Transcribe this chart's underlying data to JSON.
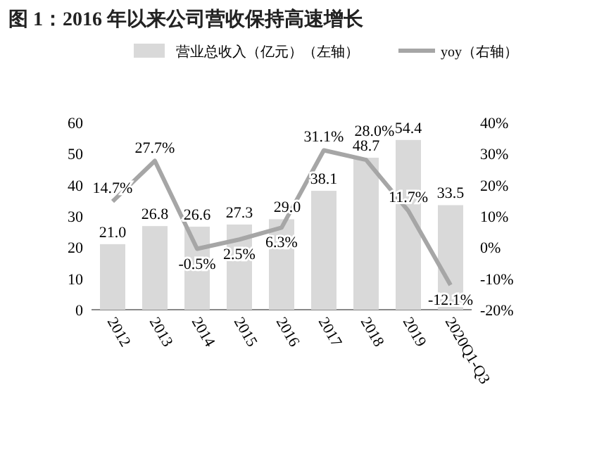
{
  "chart_data": {
    "type": "bar",
    "title": "图 1：2016 年以来公司营收保持高速增长",
    "categories": [
      "2012",
      "2013",
      "2014",
      "2015",
      "2016",
      "2017",
      "2018",
      "2019",
      "2020Q1-Q3"
    ],
    "series": [
      {
        "name": "营业总收入（亿元）（左轴）",
        "color": "#d9d9d9",
        "values": [
          21.0,
          26.8,
          26.6,
          27.3,
          29.0,
          38.1,
          48.7,
          54.4,
          33.5
        ],
        "value_labels": [
          "21.0",
          "26.8",
          "26.6",
          "27.3",
          "29.0",
          "38.1",
          "48.7",
          "54.4",
          "33.5"
        ]
      },
      {
        "name": "yoy（右轴）",
        "type": "line",
        "axis": "y2",
        "color": "#a6a6a6",
        "values": [
          14.7,
          27.7,
          -0.5,
          2.5,
          6.3,
          31.1,
          28.0,
          11.7,
          -12.1
        ],
        "value_labels": [
          "14.7%",
          "27.7%",
          "-0.5%",
          "2.5%",
          "6.3%",
          "31.1%",
          "28.0%",
          "11.7%",
          "-12.1%"
        ]
      }
    ],
    "ylim": [
      0,
      60
    ],
    "yticks": [
      0,
      10,
      20,
      30,
      40,
      50,
      60
    ],
    "y2lim": [
      -20,
      40
    ],
    "y2ticks": [
      {
        "value": -20,
        "label": "-20%"
      },
      {
        "value": -10,
        "label": "-10%"
      },
      {
        "value": 0,
        "label": "0%"
      },
      {
        "value": 10,
        "label": "10%"
      },
      {
        "value": 20,
        "label": "20%"
      },
      {
        "value": 30,
        "label": "30%"
      },
      {
        "value": 40,
        "label": "40%"
      }
    ],
    "legend": "top",
    "grid": false
  }
}
